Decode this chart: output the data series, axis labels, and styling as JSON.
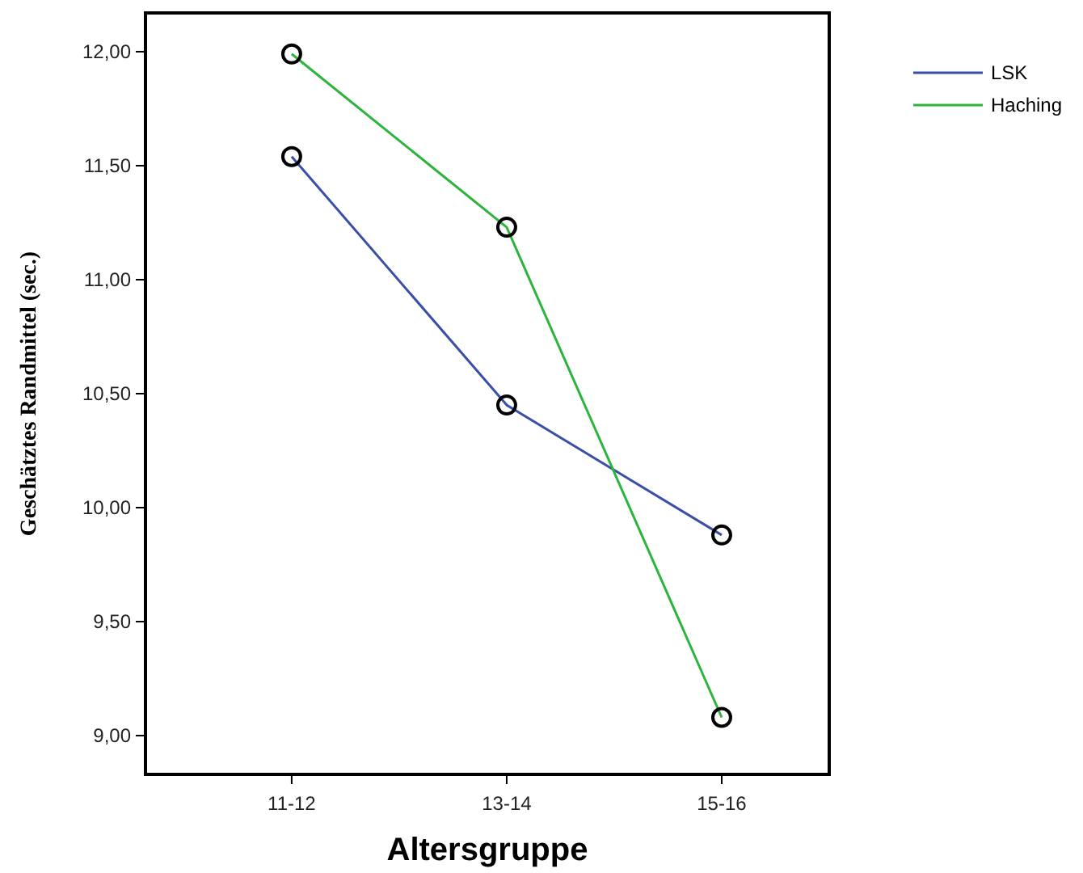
{
  "chart_data": {
    "type": "line",
    "xlabel": "Altersgruppe",
    "ylabel": "Geschätztes Randmittel (sec.)",
    "categories": [
      "11-12",
      "13-14",
      "15-16"
    ],
    "series": [
      {
        "name": "LSK",
        "color": "#3a4fa8",
        "values": [
          11.54,
          10.45,
          9.88
        ]
      },
      {
        "name": "Haching",
        "color": "#2db43c",
        "values": [
          11.99,
          11.23,
          9.08
        ]
      }
    ],
    "ylim": [
      8.83,
      12.17
    ],
    "yticks": [
      {
        "value": 9,
        "label": "9,00"
      },
      {
        "value": 9.5,
        "label": "9,50"
      },
      {
        "value": 10,
        "label": "10,00"
      },
      {
        "value": 10.5,
        "label": "10,50"
      },
      {
        "value": 11,
        "label": "11,00"
      },
      {
        "value": 11.5,
        "label": "11,50"
      },
      {
        "value": 12,
        "label": "12,00"
      }
    ],
    "marker": "circle",
    "line_style": "solid",
    "grid": false,
    "legend": "top right"
  }
}
